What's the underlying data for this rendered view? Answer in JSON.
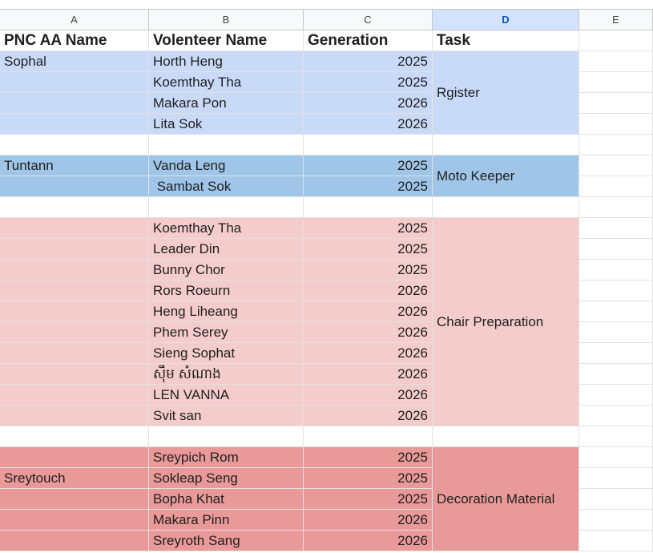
{
  "columns": [
    "A",
    "B",
    "C",
    "D",
    "E"
  ],
  "selected_column": "D",
  "header": {
    "pnc_name": "PNC AA Name",
    "volunteer_name": "Volenteer Name",
    "generation": "Generation",
    "task": "Task"
  },
  "colors": {
    "register_group": "#c9daf8",
    "moto_group": "#9fc5e8",
    "chair_group": "#f4cccc",
    "decoration_group": "#ea9999",
    "grid_line": "#e2e2e2",
    "selected_header": "#d3e3fd"
  },
  "groups": [
    {
      "task": "Rgister",
      "color_key": "register_group",
      "pnc_label": "Sophal",
      "pnc_align": "top",
      "rows": [
        {
          "name": "Horth Heng",
          "generation": "2025"
        },
        {
          "name": "Koemthay Tha",
          "generation": "2025"
        },
        {
          "name": "Makara Pon",
          "generation": "2026"
        },
        {
          "name": "Lita Sok",
          "generation": "2026"
        }
      ]
    },
    {
      "task": "Moto Keeper",
      "color_key": "moto_group",
      "pnc_label": "Tuntann",
      "pnc_align": "top",
      "rows": [
        {
          "name": "Vanda Leng",
          "generation": "2025"
        },
        {
          "name": " Sambat Sok",
          "generation": "2025"
        }
      ]
    },
    {
      "task": "Chair Preparation",
      "color_key": "chair_group",
      "pnc_label": "",
      "pnc_align": "top",
      "rows": [
        {
          "name": "Koemthay Tha",
          "generation": "2025"
        },
        {
          "name": "Leader Din",
          "generation": "2025"
        },
        {
          "name": "Bunny Chor",
          "generation": "2025"
        },
        {
          "name": "Rors Roeurn",
          "generation": "2026"
        },
        {
          "name": "Heng Liheang",
          "generation": "2026"
        },
        {
          "name": "Phem Serey",
          "generation": "2026"
        },
        {
          "name": "Sieng Sophat",
          "generation": "2026"
        },
        {
          "name": "ស៊ឹម សំណាង",
          "generation": "2026"
        },
        {
          "name": "LEN VANNA",
          "generation": "2026"
        },
        {
          "name": "Svit san",
          "generation": "2026"
        }
      ]
    },
    {
      "task": "Decoration Material",
      "color_key": "decoration_group",
      "pnc_label": "Sreytouch",
      "pnc_align": "row1",
      "rows": [
        {
          "name": "Sreypich Rom",
          "generation": "2025"
        },
        {
          "name": "Sokleap Seng",
          "generation": "2025"
        },
        {
          "name": "Bopha Khat",
          "generation": "2025"
        },
        {
          "name": "Makara Pinn",
          "generation": "2026"
        },
        {
          "name": "Sreyroth Sang",
          "generation": "2026"
        }
      ]
    }
  ]
}
